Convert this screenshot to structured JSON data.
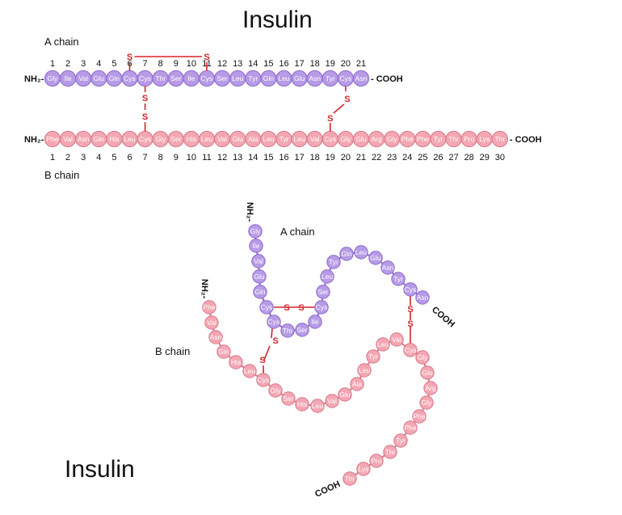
{
  "title_top": "Insulin",
  "title_bottom": "Insulin",
  "a_chain_label": "A chain",
  "b_chain_label": "B chain",
  "a_chain_label_fold": "A chain",
  "b_chain_label_fold": "B chain",
  "n_terminus": "NH₂-",
  "c_terminus": "- COOH",
  "n_terminus_fold": "NH₂-",
  "c_terminus_fold": "COOH",
  "disulfide_symbol": "S",
  "colors": {
    "a_chain_fill": "#b79be6",
    "a_chain_stroke": "#8c68cf",
    "b_chain_fill": "#f3a7b3",
    "b_chain_stroke": "#d9788a",
    "bond": "#d6232a"
  },
  "a_chain": [
    "Gly",
    "Ile",
    "Val",
    "Glu",
    "Gln",
    "Cys",
    "Cys",
    "Thr",
    "Ser",
    "Ile",
    "Cys",
    "Ser",
    "Leu",
    "Tyr",
    "Gln",
    "Leu",
    "Glu",
    "Asn",
    "Tyr",
    "Cys",
    "Asn"
  ],
  "b_chain": [
    "Phe",
    "Val",
    "Asn",
    "Gln",
    "His",
    "Leu",
    "Cys",
    "Gly",
    "Ser",
    "His",
    "Leu",
    "Val",
    "Glu",
    "Ala",
    "Leu",
    "Tyr",
    "Leu",
    "Val",
    "Cys",
    "Gly",
    "Glu",
    "Arg",
    "Gly",
    "Phe",
    "Phe",
    "Tyr",
    "Thr",
    "Pro",
    "Lys",
    "Thr"
  ],
  "a_positions": [
    "1",
    "2",
    "3",
    "4",
    "5",
    "6",
    "7",
    "8",
    "9",
    "10",
    "11",
    "12",
    "13",
    "14",
    "15",
    "16",
    "17",
    "18",
    "19",
    "20",
    "21"
  ],
  "b_positions": [
    "1",
    "2",
    "3",
    "4",
    "5",
    "6",
    "7",
    "8",
    "9",
    "10",
    "11",
    "12",
    "13",
    "14",
    "15",
    "16",
    "17",
    "18",
    "19",
    "20",
    "21",
    "22",
    "23",
    "24",
    "25",
    "26",
    "27",
    "28",
    "29",
    "30"
  ],
  "disulfide_bonds": [
    {
      "from_chain": "A",
      "from_residue": 6,
      "to_chain": "A",
      "to_residue": 11
    },
    {
      "from_chain": "A",
      "from_residue": 7,
      "to_chain": "B",
      "to_residue": 7
    },
    {
      "from_chain": "A",
      "from_residue": 20,
      "to_chain": "B",
      "to_residue": 19
    }
  ]
}
